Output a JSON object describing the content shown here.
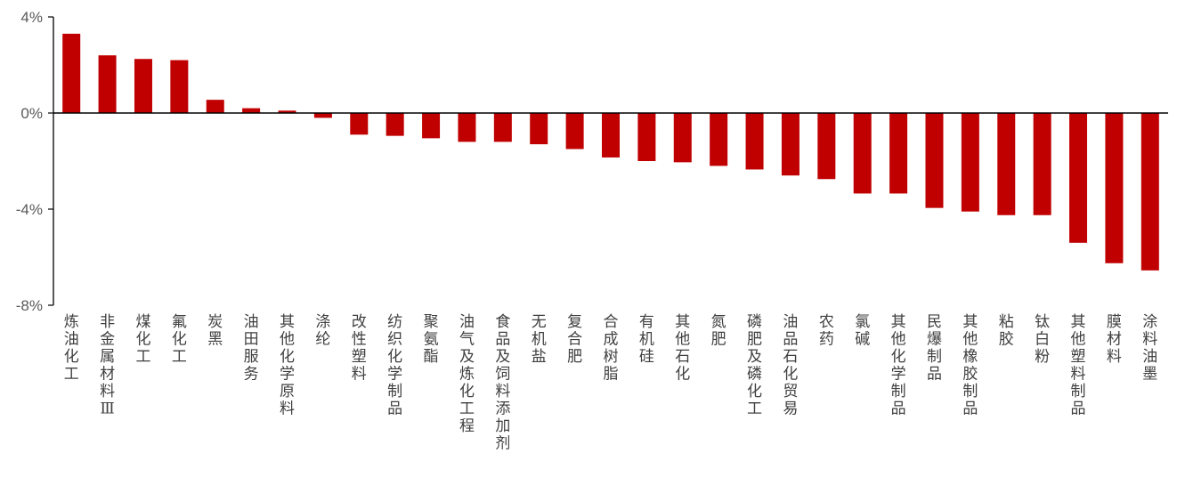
{
  "chart_data": {
    "type": "bar",
    "categories": [
      "炼油化工",
      "非金属材料Ⅲ",
      "煤化工",
      "氟化工",
      "炭黑",
      "油田服务",
      "其他化学原料",
      "涤纶",
      "改性塑料",
      "纺织化学制品",
      "聚氨酯",
      "油气及炼化工程",
      "食品及饲料添加剂",
      "无机盐",
      "复合肥",
      "合成树脂",
      "有机硅",
      "其他石化",
      "氮肥",
      "磷肥及磷化工",
      "油品石化贸易",
      "农药",
      "氯碱",
      "其他化学制品",
      "民爆制品",
      "其他橡胶制品",
      "粘胶",
      "钛白粉",
      "其他塑料制品",
      "膜材料",
      "涂料油墨"
    ],
    "series": [
      {
        "values": [
          3.3,
          2.4,
          2.25,
          2.2,
          0.55,
          0.2,
          0.1,
          -0.2,
          -0.9,
          -0.95,
          -1.05,
          -1.2,
          -1.2,
          -1.3,
          -1.5,
          -1.85,
          -2.0,
          -2.05,
          -2.2,
          -2.35,
          -2.6,
          -2.75,
          -3.35,
          -3.35,
          -3.95,
          -4.1,
          -4.25,
          -4.25,
          -5.4,
          -6.25,
          -6.55
        ]
      }
    ],
    "ylim": [
      -8,
      4
    ],
    "yticks": [
      4,
      0,
      -4,
      -8
    ],
    "ytick_labels": [
      "4%",
      "0%",
      "-4%",
      "-8%"
    ],
    "bar_color": "#C00000",
    "title": "",
    "xlabel": "",
    "ylabel": ""
  }
}
